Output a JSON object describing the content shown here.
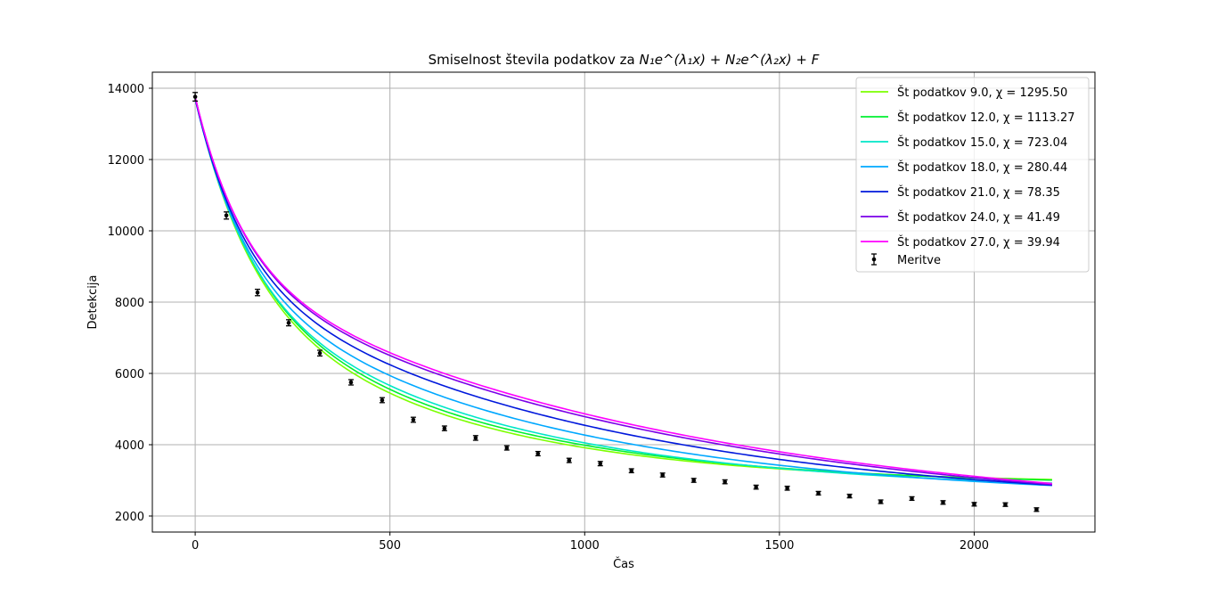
{
  "chart_data": {
    "type": "line",
    "title_text": "Smiselnost števila podatkov za ",
    "title_formula": "N₁e^(λ₁x) + N₂e^(λ₂x) + F",
    "xlabel": "Čas",
    "ylabel": "Detekcija",
    "xlim": [
      -110,
      2310
    ],
    "ylim": [
      1550,
      14450
    ],
    "xticks": [
      0,
      500,
      1000,
      1500,
      2000
    ],
    "yticks": [
      2000,
      4000,
      6000,
      8000,
      10000,
      12000,
      14000
    ],
    "grid": true,
    "legend_placement": "top-right",
    "series": [
      {
        "name": "Št podatkov 9.0, χ = 1295.50",
        "color": "#7cff00",
        "params": {
          "N1": 5000,
          "l1": -0.0075,
          "N2": 5830,
          "l2": -0.00175,
          "F": 2900
        }
      },
      {
        "name": "Št podatkov 12.0, χ = 1113.27",
        "color": "#00f030",
        "params": {
          "N1": 5000,
          "l1": -0.0075,
          "N2": 5900,
          "l2": -0.00165,
          "F": 2850
        }
      },
      {
        "name": "Št podatkov 15.0, χ = 723.04",
        "color": "#00e6c8",
        "params": {
          "N1": 5000,
          "l1": -0.0078,
          "N2": 6050,
          "l2": -0.0015,
          "F": 2700
        }
      },
      {
        "name": "Št podatkov 18.0, χ = 280.44",
        "color": "#00a8ff",
        "params": {
          "N1": 4900,
          "l1": -0.008,
          "N2": 6350,
          "l2": -0.00125,
          "F": 2450
        }
      },
      {
        "name": "Št podatkov 21.0, χ = 78.35",
        "color": "#0018dc",
        "params": {
          "N1": 4800,
          "l1": -0.0082,
          "N2": 6700,
          "l2": -0.00105,
          "F": 2200
        }
      },
      {
        "name": "Št podatkov 24.0, χ = 41.49",
        "color": "#7a00e8",
        "params": {
          "N1": 4750,
          "l1": -0.0083,
          "N2": 7100,
          "l2": -0.0009,
          "F": 1900
        }
      },
      {
        "name": "Št podatkov 27.0, χ = 39.94",
        "color": "#ff00ff",
        "params": {
          "N1": 4700,
          "l1": -0.0084,
          "N2": 7200,
          "l2": -0.00087,
          "F": 1850
        }
      }
    ],
    "x_range": [
      0,
      2200
    ],
    "measurements": {
      "name": "Meritve",
      "color": "#000000",
      "x": [
        0,
        80,
        160,
        240,
        320,
        400,
        480,
        560,
        640,
        720,
        800,
        880,
        960,
        1040,
        1120,
        1200,
        1280,
        1360,
        1440,
        1520,
        1600,
        1680,
        1760,
        1840,
        1920,
        2000,
        2080,
        2160
      ],
      "y": [
        13760,
        10430,
        8270,
        7420,
        6570,
        5750,
        5250,
        4700,
        4460,
        4190,
        3910,
        3750,
        3560,
        3470,
        3270,
        3150,
        3000,
        2960,
        2810,
        2780,
        2640,
        2560,
        2400,
        2490,
        2380,
        2330,
        2320,
        2180
      ],
      "yerr": [
        120,
        100,
        90,
        85,
        80,
        75,
        70,
        70,
        65,
        65,
        60,
        60,
        60,
        60,
        55,
        55,
        55,
        55,
        55,
        55,
        50,
        50,
        50,
        50,
        50,
        50,
        50,
        50
      ]
    }
  }
}
